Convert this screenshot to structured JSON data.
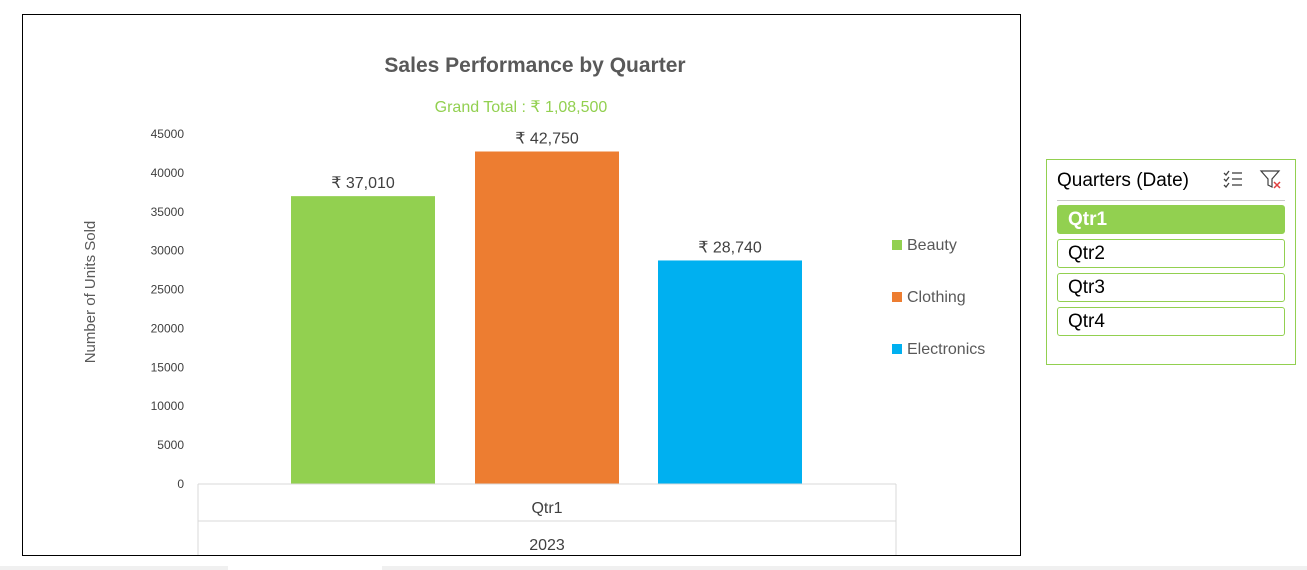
{
  "chart_data": {
    "type": "bar",
    "title": "Sales Performance by Quarter",
    "subtitle": "Grand Total : ₹ 1,08,500",
    "ylabel": "Number of Units Sold",
    "xlabel": "",
    "categories": [
      "Qtr1"
    ],
    "category_group": "2023",
    "series": [
      {
        "name": "Beauty",
        "values": [
          37010
        ],
        "color": "#92D050",
        "label": "₹ 37,010"
      },
      {
        "name": "Clothing",
        "values": [
          42750
        ],
        "color": "#ED7D31",
        "label": "₹ 42,750"
      },
      {
        "name": "Electronics",
        "values": [
          28740
        ],
        "color": "#00B0F0",
        "label": "₹ 28,740"
      }
    ],
    "ylim": [
      0,
      45000
    ],
    "y_ticks": [
      "0",
      "5000",
      "10000",
      "15000",
      "20000",
      "25000",
      "30000",
      "35000",
      "40000",
      "45000"
    ],
    "grid": false,
    "legend": "right",
    "subtitle_color": "#92D050"
  },
  "slicer": {
    "title": "Quarters (Date)",
    "multi_select_icon": "multi-select-icon",
    "clear_filter_icon": "clear-filter-icon",
    "items": [
      {
        "label": "Qtr1",
        "selected": true
      },
      {
        "label": "Qtr2",
        "selected": false
      },
      {
        "label": "Qtr3",
        "selected": false
      },
      {
        "label": "Qtr4",
        "selected": false
      }
    ],
    "accent": "#92D050"
  }
}
